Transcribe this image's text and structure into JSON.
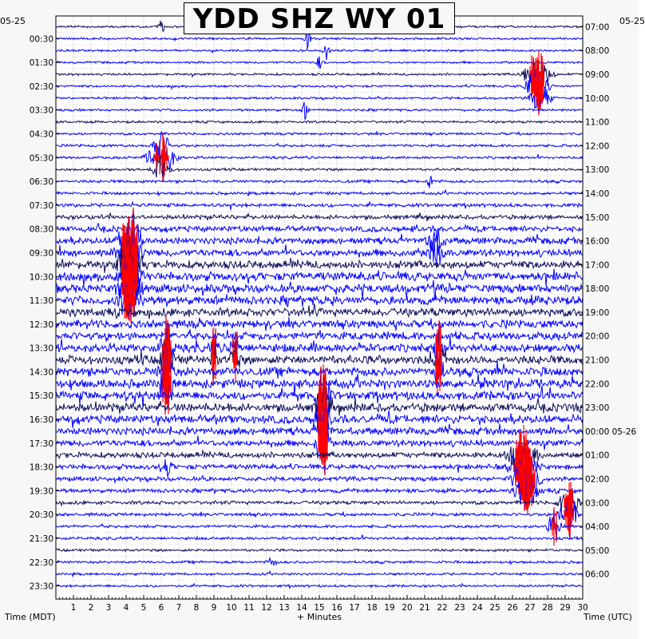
{
  "title": "YDD SHZ WY 01",
  "date_left": "05-25",
  "date_right": "05-25",
  "date_right_next": "05-26",
  "xlabel": "+ Minutes",
  "left_axis_label": "Time (MDT)",
  "right_axis_label": "Time (UTC)",
  "colors": {
    "trace_dark": "#0b0b5a",
    "trace_blue": "#0000ff",
    "clip": "#ff0000",
    "background": "#ffffff"
  },
  "chart_data": {
    "type": "line",
    "title": "YDD SHZ WY 01",
    "xlabel": "+ Minutes",
    "ylabel_left": "Time (MDT)",
    "ylabel_right": "Time (UTC)",
    "xlim": [
      0,
      30
    ],
    "x_ticks": [
      "1",
      "2",
      "3",
      "4",
      "5",
      "6",
      "7",
      "8",
      "9",
      "10",
      "11",
      "12",
      "13",
      "14",
      "15",
      "16",
      "17",
      "18",
      "19",
      "20",
      "21",
      "22",
      "23",
      "24",
      "25",
      "26",
      "27",
      "28",
      "29",
      "30"
    ],
    "left_hour_labels": [
      "00:30",
      "01:30",
      "02:30",
      "03:30",
      "04:30",
      "05:30",
      "06:30",
      "07:30",
      "08:30",
      "09:30",
      "10:30",
      "11:30",
      "12:30",
      "13:30",
      "14:30",
      "15:30",
      "16:30",
      "17:30",
      "18:30",
      "19:30",
      "20:30",
      "21:30",
      "22:30",
      "23:30"
    ],
    "right_hour_labels": [
      "07:00",
      "08:00",
      "09:00",
      "10:00",
      "11:00",
      "12:00",
      "13:00",
      "14:00",
      "15:00",
      "16:00",
      "17:00",
      "18:00",
      "19:00",
      "20:00",
      "21:00",
      "22:00",
      "23:00",
      "00:00",
      "01:00",
      "02:00",
      "03:00",
      "04:00",
      "05:00",
      "06:00"
    ],
    "rows_count": 48,
    "minutes_per_row": 30,
    "noise_amplitude_by_row": [
      0.15,
      0.15,
      0.15,
      0.15,
      0.16,
      0.16,
      0.16,
      0.17,
      0.17,
      0.17,
      0.18,
      0.18,
      0.18,
      0.2,
      0.2,
      0.25,
      0.3,
      0.4,
      0.45,
      0.5,
      0.55,
      0.6,
      0.6,
      0.6,
      0.58,
      0.55,
      0.55,
      0.58,
      0.6,
      0.6,
      0.62,
      0.6,
      0.6,
      0.58,
      0.5,
      0.45,
      0.4,
      0.35,
      0.3,
      0.28,
      0.25,
      0.22,
      0.2,
      0.2,
      0.18,
      0.18,
      0.17,
      0.17
    ],
    "events": [
      {
        "row": 0,
        "minute": 6.0,
        "amp": 1.0,
        "dur": 0.4
      },
      {
        "row": 1,
        "minute": 14.3,
        "amp": 2.5,
        "dur": 0.3
      },
      {
        "row": 2,
        "minute": 15.4,
        "amp": 1.5,
        "dur": 0.3
      },
      {
        "row": 3,
        "minute": 15.0,
        "amp": 1.0,
        "dur": 0.3
      },
      {
        "row": 4,
        "minute": 27.4,
        "amp": 4.0,
        "dur": 1.2
      },
      {
        "row": 5,
        "minute": 27.4,
        "amp": 4.0,
        "dur": 1.0
      },
      {
        "row": 6,
        "minute": 27.6,
        "amp": 3.0,
        "dur": 0.9
      },
      {
        "row": 7,
        "minute": 14.2,
        "amp": 1.5,
        "dur": 0.3
      },
      {
        "row": 10,
        "minute": 6.0,
        "amp": 2.5,
        "dur": 0.8
      },
      {
        "row": 11,
        "minute": 6.0,
        "amp": 4.0,
        "dur": 1.2
      },
      {
        "row": 12,
        "minute": 6.0,
        "amp": 2.0,
        "dur": 0.8
      },
      {
        "row": 13,
        "minute": 21.3,
        "amp": 1.2,
        "dur": 0.3
      },
      {
        "row": 18,
        "minute": 4.2,
        "amp": 6.0,
        "dur": 1.0
      },
      {
        "row": 19,
        "minute": 4.2,
        "amp": 6.0,
        "dur": 1.0
      },
      {
        "row": 20,
        "minute": 4.2,
        "amp": 6.0,
        "dur": 1.0
      },
      {
        "row": 21,
        "minute": 4.2,
        "amp": 6.0,
        "dur": 1.0
      },
      {
        "row": 22,
        "minute": 4.2,
        "amp": 5.0,
        "dur": 1.0
      },
      {
        "row": 23,
        "minute": 4.2,
        "amp": 4.0,
        "dur": 1.0
      },
      {
        "row": 18,
        "minute": 21.6,
        "amp": 2.0,
        "dur": 0.8
      },
      {
        "row": 19,
        "minute": 21.6,
        "amp": 2.0,
        "dur": 0.8
      },
      {
        "row": 27,
        "minute": 6.3,
        "amp": 5.0,
        "dur": 0.6
      },
      {
        "row": 28,
        "minute": 6.3,
        "amp": 5.0,
        "dur": 0.6
      },
      {
        "row": 29,
        "minute": 6.3,
        "amp": 5.0,
        "dur": 0.6
      },
      {
        "row": 30,
        "minute": 6.3,
        "amp": 5.0,
        "dur": 0.6
      },
      {
        "row": 27,
        "minute": 9.0,
        "amp": 4.0,
        "dur": 0.3
      },
      {
        "row": 28,
        "minute": 9.0,
        "amp": 4.0,
        "dur": 0.3
      },
      {
        "row": 27,
        "minute": 10.2,
        "amp": 4.0,
        "dur": 0.4
      },
      {
        "row": 28,
        "minute": 10.2,
        "amp": 4.0,
        "dur": 0.4
      },
      {
        "row": 27,
        "minute": 21.8,
        "amp": 5.0,
        "dur": 0.4
      },
      {
        "row": 28,
        "minute": 21.8,
        "amp": 5.0,
        "dur": 0.4
      },
      {
        "row": 29,
        "minute": 21.8,
        "amp": 5.0,
        "dur": 0.4
      },
      {
        "row": 31,
        "minute": 15.2,
        "amp": 6.0,
        "dur": 0.6
      },
      {
        "row": 32,
        "minute": 15.2,
        "amp": 6.0,
        "dur": 0.6
      },
      {
        "row": 33,
        "minute": 15.2,
        "amp": 6.0,
        "dur": 0.6
      },
      {
        "row": 34,
        "minute": 15.2,
        "amp": 6.0,
        "dur": 0.6
      },
      {
        "row": 35,
        "minute": 15.2,
        "amp": 6.0,
        "dur": 0.6
      },
      {
        "row": 36,
        "minute": 26.6,
        "amp": 4.0,
        "dur": 1.2
      },
      {
        "row": 37,
        "minute": 26.6,
        "amp": 5.0,
        "dur": 1.2
      },
      {
        "row": 38,
        "minute": 26.8,
        "amp": 5.0,
        "dur": 1.2
      },
      {
        "row": 39,
        "minute": 26.8,
        "amp": 4.0,
        "dur": 1.0
      },
      {
        "row": 40,
        "minute": 29.2,
        "amp": 4.0,
        "dur": 0.8
      },
      {
        "row": 41,
        "minute": 29.2,
        "amp": 4.0,
        "dur": 0.8
      },
      {
        "row": 42,
        "minute": 28.4,
        "amp": 3.0,
        "dur": 0.6
      },
      {
        "row": 37,
        "minute": 6.3,
        "amp": 1.5,
        "dur": 0.5
      },
      {
        "row": 45,
        "minute": 12.3,
        "amp": 1.0,
        "dur": 0.4
      }
    ]
  }
}
